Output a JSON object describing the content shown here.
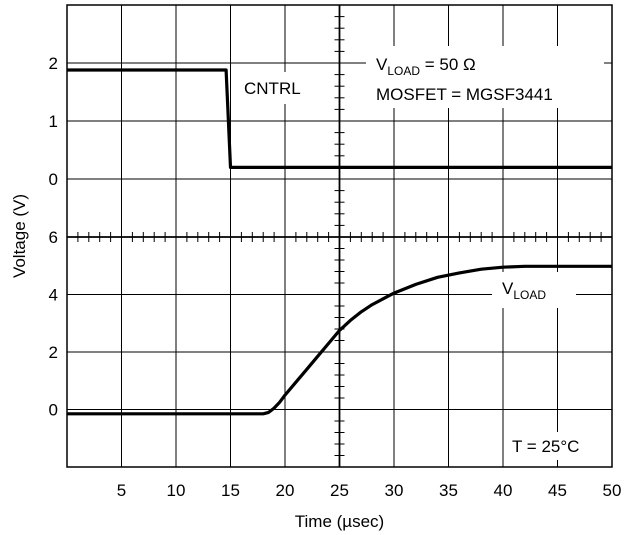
{
  "chart_data": {
    "type": "line",
    "xlabel": "Time (µsec)",
    "ylabel": "Voltage (V)",
    "xlim": [
      0,
      50
    ],
    "x_ticks": [
      5,
      10,
      15,
      20,
      25,
      30,
      35,
      40,
      45,
      50
    ],
    "grid": true,
    "panels": [
      {
        "id": "top",
        "ylim": [
          -1,
          3
        ],
        "y_ticks": [
          0,
          1,
          2
        ],
        "series": [
          {
            "name": "CNTRL",
            "x": [
              0,
              14.6,
              15.0,
              50
            ],
            "y": [
              1.88,
              1.88,
              0.2,
              0.2
            ]
          }
        ],
        "annotations": {
          "series_label": "CNTRL",
          "vload_main": "V",
          "vload_sub": "LOAD",
          "vload_rest": " = 50 Ω",
          "mosfet": "MOSFET = MGSF3441"
        }
      },
      {
        "id": "bottom",
        "ylim": [
          -2,
          6
        ],
        "y_ticks": [
          0,
          2,
          4,
          6
        ],
        "series": [
          {
            "name": "VLOAD",
            "x": [
              0,
              18,
              18.5,
              19,
              19.5,
              20,
              21,
              22,
              23,
              24,
              25,
              26,
              27,
              28,
              29,
              30,
              32,
              34,
              36,
              38,
              40,
              42,
              45,
              50
            ],
            "y": [
              -0.15,
              -0.15,
              -0.1,
              0.05,
              0.25,
              0.5,
              0.95,
              1.4,
              1.85,
              2.3,
              2.75,
              3.1,
              3.4,
              3.65,
              3.85,
              4.05,
              4.35,
              4.6,
              4.75,
              4.88,
              4.95,
              4.98,
              4.98,
              4.98
            ]
          }
        ],
        "annotations": {
          "series_label_main": "V",
          "series_label_sub": "LOAD",
          "temp": "T = 25°C"
        }
      }
    ]
  }
}
